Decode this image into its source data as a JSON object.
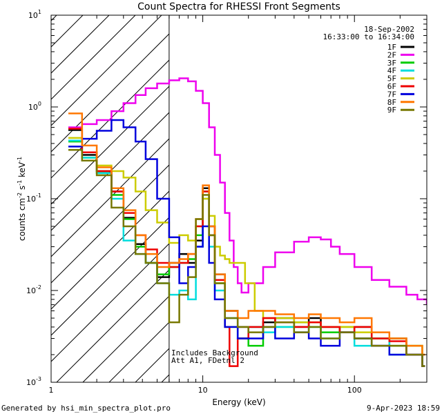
{
  "chart_data": {
    "type": "line",
    "title": "Count Spectra for RHESSI Front Segments",
    "xlabel": "Energy (keV)",
    "ylabel": "counts cm",
    "ylabel_exp1": "-2",
    "ylabel_mid": " s",
    "ylabel_exp2": "-1",
    "ylabel_end": " keV",
    "ylabel_exp3": "-1",
    "x_scale": "log",
    "y_scale": "log",
    "xlim": [
      1.0,
      300.0
    ],
    "ylim": [
      0.001,
      10.0
    ],
    "x_ticks": [
      {
        "v": 1,
        "label": "1"
      },
      {
        "v": 10,
        "label": "10"
      },
      {
        "v": 100,
        "label": "100"
      }
    ],
    "y_ticks": [
      {
        "v": 0.001,
        "base": "10",
        "exp": "-3"
      },
      {
        "v": 0.01,
        "base": "10",
        "exp": "-2"
      },
      {
        "v": 0.1,
        "base": "10",
        "exp": "-1"
      },
      {
        "v": 1,
        "base": "10",
        "exp": "0"
      },
      {
        "v": 10,
        "base": "10",
        "exp": "1"
      }
    ],
    "hatched_region": [
      1.0,
      6.0
    ],
    "date": "18-Sep-2002",
    "time_range": "16:33:00 to 16:34:00",
    "annotations": [
      "Includes Background",
      "Att A1, FDetnl 2"
    ],
    "footer_left": "Generated by hsi_min_spectra_plot.pro",
    "footer_right": "9-Apr-2023 18:59",
    "series": [
      {
        "name": "1F",
        "color": "#000000",
        "points": [
          [
            1.3,
            0.56
          ],
          [
            1.6,
            0.3
          ],
          [
            2.0,
            0.2
          ],
          [
            2.5,
            0.12
          ],
          [
            3.0,
            0.062
          ],
          [
            3.6,
            0.032
          ],
          [
            4.2,
            0.02
          ],
          [
            5.0,
            0.014
          ],
          [
            6.0,
            0.02
          ],
          [
            7.0,
            0.025
          ],
          [
            8.0,
            0.02
          ],
          [
            9.0,
            0.035
          ],
          [
            10.0,
            0.13
          ],
          [
            11.0,
            0.05
          ],
          [
            12.0,
            0.015
          ],
          [
            14.0,
            0.006
          ],
          [
            17.0,
            0.004
          ],
          [
            20.0,
            0.004
          ],
          [
            25.0,
            0.0045
          ],
          [
            30.0,
            0.005
          ],
          [
            40.0,
            0.004
          ],
          [
            50.0,
            0.005
          ],
          [
            60.0,
            0.004
          ],
          [
            80.0,
            0.0035
          ],
          [
            100.0,
            0.004
          ],
          [
            130.0,
            0.0025
          ],
          [
            170.0,
            0.003
          ],
          [
            220.0,
            0.002
          ],
          [
            280.0,
            0.0015
          ]
        ]
      },
      {
        "name": "2F",
        "color": "#ee00ee",
        "points": [
          [
            1.3,
            0.6
          ],
          [
            1.6,
            0.65
          ],
          [
            2.0,
            0.72
          ],
          [
            2.5,
            0.9
          ],
          [
            3.0,
            1.1
          ],
          [
            3.6,
            1.35
          ],
          [
            4.2,
            1.6
          ],
          [
            5.0,
            1.8
          ],
          [
            6.0,
            1.95
          ],
          [
            7.0,
            2.05
          ],
          [
            8.0,
            1.9
          ],
          [
            9.0,
            1.5
          ],
          [
            10.0,
            1.1
          ],
          [
            11.0,
            0.6
          ],
          [
            12.0,
            0.3
          ],
          [
            13.0,
            0.15
          ],
          [
            14.0,
            0.07
          ],
          [
            15.0,
            0.035
          ],
          [
            16.0,
            0.018
          ],
          [
            17.0,
            0.012
          ],
          [
            18.0,
            0.0095
          ],
          [
            20.0,
            0.012
          ],
          [
            25.0,
            0.018
          ],
          [
            30.0,
            0.026
          ],
          [
            40.0,
            0.034
          ],
          [
            50.0,
            0.038
          ],
          [
            60.0,
            0.036
          ],
          [
            70.0,
            0.03
          ],
          [
            80.0,
            0.025
          ],
          [
            100.0,
            0.018
          ],
          [
            130.0,
            0.013
          ],
          [
            170.0,
            0.011
          ],
          [
            220.0,
            0.009
          ],
          [
            260.0,
            0.008
          ],
          [
            300.0,
            0.007
          ]
        ]
      },
      {
        "name": "3F",
        "color": "#00cc00",
        "points": [
          [
            1.3,
            0.42
          ],
          [
            1.6,
            0.28
          ],
          [
            2.0,
            0.19
          ],
          [
            2.5,
            0.11
          ],
          [
            3.0,
            0.06
          ],
          [
            3.6,
            0.03
          ],
          [
            4.2,
            0.02
          ],
          [
            5.0,
            0.015
          ],
          [
            6.0,
            0.018
          ],
          [
            7.0,
            0.02
          ],
          [
            8.0,
            0.022
          ],
          [
            9.0,
            0.04
          ],
          [
            10.0,
            0.12
          ],
          [
            11.0,
            0.04
          ],
          [
            12.0,
            0.012
          ],
          [
            14.0,
            0.004
          ],
          [
            17.0,
            0.003
          ],
          [
            20.0,
            0.0025
          ],
          [
            25.0,
            0.004
          ],
          [
            30.0,
            0.004
          ],
          [
            40.0,
            0.0045
          ],
          [
            50.0,
            0.004
          ],
          [
            60.0,
            0.0035
          ],
          [
            80.0,
            0.004
          ],
          [
            100.0,
            0.003
          ],
          [
            130.0,
            0.003
          ],
          [
            170.0,
            0.0025
          ],
          [
            220.0,
            0.0025
          ],
          [
            280.0,
            0.0015
          ]
        ]
      },
      {
        "name": "4F",
        "color": "#00dddd",
        "points": [
          [
            1.3,
            0.43
          ],
          [
            1.6,
            0.28
          ],
          [
            2.0,
            0.19
          ],
          [
            2.5,
            0.1
          ],
          [
            3.0,
            0.035
          ],
          [
            3.6,
            0.025
          ],
          [
            4.2,
            0.02
          ],
          [
            5.0,
            0.012
          ],
          [
            6.0,
            0.009
          ],
          [
            7.0,
            0.01
          ],
          [
            8.0,
            0.008
          ],
          [
            9.0,
            0.03
          ],
          [
            10.0,
            0.1
          ],
          [
            11.0,
            0.03
          ],
          [
            12.0,
            0.01
          ],
          [
            14.0,
            0.005
          ],
          [
            17.0,
            0.003
          ],
          [
            20.0,
            0.004
          ],
          [
            25.0,
            0.0035
          ],
          [
            30.0,
            0.004
          ],
          [
            40.0,
            0.0035
          ],
          [
            50.0,
            0.004
          ],
          [
            60.0,
            0.003
          ],
          [
            80.0,
            0.0035
          ],
          [
            100.0,
            0.0025
          ],
          [
            130.0,
            0.003
          ],
          [
            170.0,
            0.002
          ],
          [
            220.0,
            0.002
          ],
          [
            280.0,
            0.0015
          ]
        ]
      },
      {
        "name": "5F",
        "color": "#cccc00",
        "points": [
          [
            1.3,
            0.46
          ],
          [
            1.6,
            0.32
          ],
          [
            2.0,
            0.23
          ],
          [
            2.5,
            0.2
          ],
          [
            3.0,
            0.17
          ],
          [
            3.6,
            0.12
          ],
          [
            4.2,
            0.075
          ],
          [
            5.0,
            0.055
          ],
          [
            6.0,
            0.033
          ],
          [
            7.0,
            0.04
          ],
          [
            8.0,
            0.035
          ],
          [
            9.0,
            0.05
          ],
          [
            10.0,
            0.1
          ],
          [
            11.0,
            0.065
          ],
          [
            12.0,
            0.03
          ],
          [
            13.0,
            0.024
          ],
          [
            14.0,
            0.022
          ],
          [
            15.0,
            0.02
          ],
          [
            17.0,
            0.02
          ],
          [
            19.0,
            0.012
          ],
          [
            22.0,
            0.006
          ],
          [
            25.0,
            0.005
          ],
          [
            30.0,
            0.005
          ],
          [
            40.0,
            0.0045
          ],
          [
            60.0,
            0.004
          ],
          [
            80.0,
            0.004
          ],
          [
            100.0,
            0.0035
          ],
          [
            130.0,
            0.003
          ],
          [
            170.0,
            0.003
          ],
          [
            220.0,
            0.0025
          ],
          [
            280.0,
            0.002
          ]
        ]
      },
      {
        "name": "6F",
        "color": "#ee0000",
        "points": [
          [
            1.3,
            0.58
          ],
          [
            1.6,
            0.32
          ],
          [
            2.0,
            0.2
          ],
          [
            2.5,
            0.12
          ],
          [
            3.0,
            0.07
          ],
          [
            3.6,
            0.04
          ],
          [
            4.2,
            0.028
          ],
          [
            5.0,
            0.02
          ],
          [
            6.0,
            0.018
          ],
          [
            7.0,
            0.02
          ],
          [
            8.0,
            0.025
          ],
          [
            9.0,
            0.05
          ],
          [
            10.0,
            0.12
          ],
          [
            11.0,
            0.04
          ],
          [
            12.0,
            0.013
          ],
          [
            14.0,
            0.004
          ],
          [
            15.0,
            0.0015
          ],
          [
            17.0,
            0.003
          ],
          [
            20.0,
            0.004
          ],
          [
            25.0,
            0.005
          ],
          [
            30.0,
            0.0045
          ],
          [
            40.0,
            0.004
          ],
          [
            50.0,
            0.0045
          ],
          [
            60.0,
            0.004
          ],
          [
            80.0,
            0.0035
          ],
          [
            100.0,
            0.004
          ],
          [
            130.0,
            0.003
          ],
          [
            170.0,
            0.0028
          ],
          [
            220.0,
            0.002
          ],
          [
            280.0,
            0.0015
          ]
        ]
      },
      {
        "name": "7F",
        "color": "#0000dd",
        "points": [
          [
            1.3,
            0.37
          ],
          [
            1.6,
            0.45
          ],
          [
            2.0,
            0.55
          ],
          [
            2.5,
            0.72
          ],
          [
            3.0,
            0.6
          ],
          [
            3.6,
            0.42
          ],
          [
            4.2,
            0.27
          ],
          [
            5.0,
            0.1
          ],
          [
            6.0,
            0.038
          ],
          [
            7.0,
            0.012
          ],
          [
            8.0,
            0.018
          ],
          [
            9.0,
            0.03
          ],
          [
            10.0,
            0.05
          ],
          [
            11.0,
            0.02
          ],
          [
            12.0,
            0.008
          ],
          [
            14.0,
            0.004
          ],
          [
            17.0,
            0.003
          ],
          [
            20.0,
            0.003
          ],
          [
            25.0,
            0.004
          ],
          [
            30.0,
            0.003
          ],
          [
            40.0,
            0.0035
          ],
          [
            50.0,
            0.003
          ],
          [
            60.0,
            0.0025
          ],
          [
            80.0,
            0.0035
          ],
          [
            100.0,
            0.003
          ],
          [
            130.0,
            0.0025
          ],
          [
            170.0,
            0.002
          ],
          [
            220.0,
            0.002
          ],
          [
            280.0,
            0.0015
          ]
        ]
      },
      {
        "name": "8F",
        "color": "#ff7700",
        "points": [
          [
            1.3,
            0.85
          ],
          [
            1.6,
            0.38
          ],
          [
            2.0,
            0.22
          ],
          [
            2.5,
            0.13
          ],
          [
            3.0,
            0.075
          ],
          [
            3.6,
            0.04
          ],
          [
            4.2,
            0.025
          ],
          [
            5.0,
            0.018
          ],
          [
            6.0,
            0.02
          ],
          [
            7.0,
            0.022
          ],
          [
            8.0,
            0.025
          ],
          [
            9.0,
            0.06
          ],
          [
            10.0,
            0.14
          ],
          [
            11.0,
            0.05
          ],
          [
            12.0,
            0.015
          ],
          [
            14.0,
            0.006
          ],
          [
            17.0,
            0.005
          ],
          [
            20.0,
            0.006
          ],
          [
            25.0,
            0.006
          ],
          [
            30.0,
            0.0055
          ],
          [
            40.0,
            0.005
          ],
          [
            50.0,
            0.0055
          ],
          [
            60.0,
            0.005
          ],
          [
            80.0,
            0.0045
          ],
          [
            100.0,
            0.005
          ],
          [
            130.0,
            0.0035
          ],
          [
            170.0,
            0.003
          ],
          [
            220.0,
            0.0025
          ],
          [
            280.0,
            0.002
          ]
        ]
      },
      {
        "name": "9F",
        "color": "#777700",
        "points": [
          [
            1.3,
            0.34
          ],
          [
            1.6,
            0.26
          ],
          [
            2.0,
            0.18
          ],
          [
            2.5,
            0.08
          ],
          [
            3.0,
            0.05
          ],
          [
            3.6,
            0.025
          ],
          [
            4.2,
            0.02
          ],
          [
            5.0,
            0.012
          ],
          [
            6.0,
            0.0045
          ],
          [
            7.0,
            0.009
          ],
          [
            8.0,
            0.014
          ],
          [
            9.0,
            0.06
          ],
          [
            10.0,
            0.11
          ],
          [
            11.0,
            0.04
          ],
          [
            12.0,
            0.012
          ],
          [
            14.0,
            0.005
          ],
          [
            17.0,
            0.004
          ],
          [
            20.0,
            0.0035
          ],
          [
            25.0,
            0.004
          ],
          [
            30.0,
            0.0045
          ],
          [
            40.0,
            0.0035
          ],
          [
            50.0,
            0.004
          ],
          [
            60.0,
            0.003
          ],
          [
            80.0,
            0.0035
          ],
          [
            100.0,
            0.003
          ],
          [
            130.0,
            0.0025
          ],
          [
            170.0,
            0.0025
          ],
          [
            220.0,
            0.002
          ],
          [
            280.0,
            0.0015
          ]
        ]
      }
    ]
  }
}
